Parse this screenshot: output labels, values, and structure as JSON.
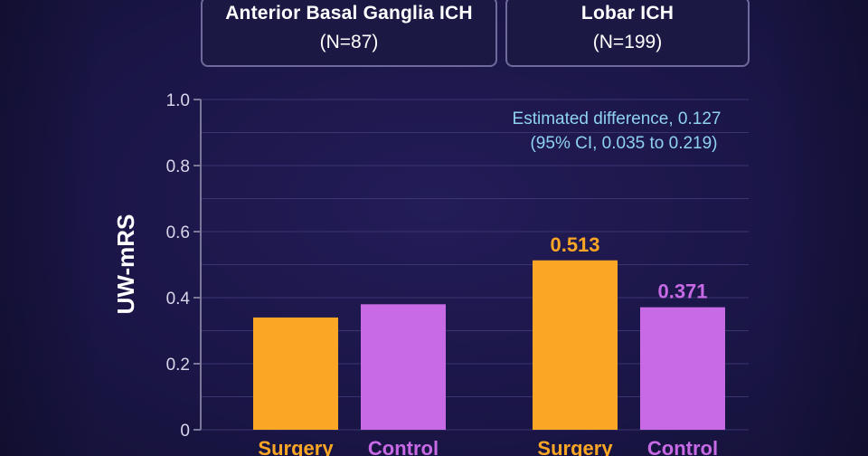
{
  "groups": [
    {
      "name": "Anterior Basal Ganglia ICH",
      "n": "(N=87)"
    },
    {
      "name": "Lobar ICH",
      "n": "(N=199)"
    }
  ],
  "annotation": {
    "line1": "Estimated difference, 0.127",
    "line2": "(95% CI, 0.035 to 0.219)"
  },
  "colors": {
    "surgery": "#fba625",
    "control": "#c86ae6",
    "annotation": "#8fd2f0"
  },
  "chart_data": {
    "type": "bar",
    "ylabel": "UW-mRS",
    "ylim": [
      0,
      1.0
    ],
    "yticks": [
      0,
      0.2,
      0.4,
      0.6,
      0.8,
      1.0
    ],
    "ytick_labels": [
      "0",
      "0.2",
      "0.4",
      "0.6",
      "0.8",
      "1.0"
    ],
    "groups": [
      "Anterior Basal Ganglia ICH",
      "Lobar ICH"
    ],
    "categories": [
      "Surgery",
      "Control"
    ],
    "series": [
      {
        "group": "Anterior Basal Ganglia ICH",
        "values": [
          0.34,
          0.38
        ],
        "labels": [
          "",
          ""
        ]
      },
      {
        "group": "Lobar ICH",
        "values": [
          0.513,
          0.371
        ],
        "labels": [
          "0.513",
          "0.371"
        ]
      }
    ],
    "grid": true
  }
}
